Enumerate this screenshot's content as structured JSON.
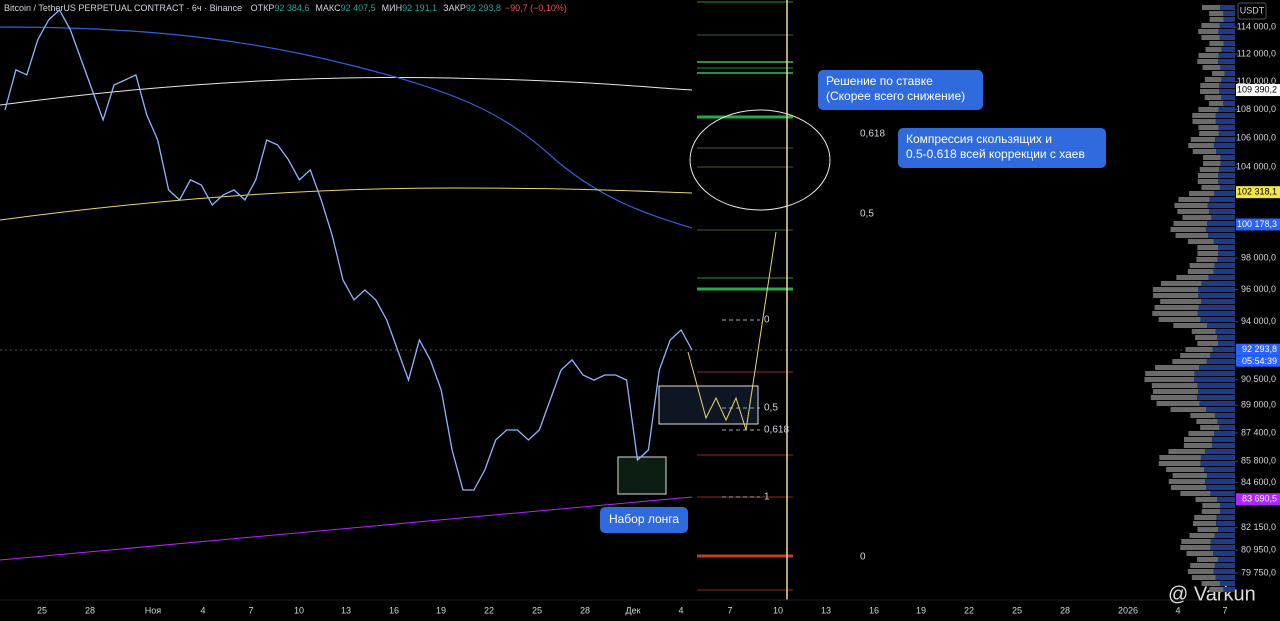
{
  "chart_data": {
    "type": "line",
    "title": "Bitcoin / TetherUS PERPETUAL CONTRACT · 6ч · Binance",
    "ohlc_header": [
      {
        "name": "ОТКР",
        "text": "92 384,6"
      },
      {
        "name": "МАКС",
        "text": "92 407,5"
      },
      {
        "name": "МИН",
        "text": "92 191,1"
      },
      {
        "name": "ЗАКР",
        "text": "92 293,8"
      }
    ],
    "change": "−90,7 (−0,10%)",
    "currency": "USDT",
    "log_scale": true,
    "grid": false,
    "ylim": [
      78350,
      116030
    ],
    "yticks": [
      {
        "value": 114000,
        "label": "114 000,0"
      },
      {
        "value": 112000,
        "label": "112 000,0"
      },
      {
        "value": 110000,
        "label": "110 000,0"
      },
      {
        "value": 108000,
        "label": "108 000,0"
      },
      {
        "value": 106000,
        "label": "106 000,0"
      },
      {
        "value": 104000,
        "label": "104 000,0"
      },
      {
        "value": 98000,
        "label": "98 000,0"
      },
      {
        "value": 96000,
        "label": "96 000,0"
      },
      {
        "value": 94000,
        "label": "94 000,0"
      },
      {
        "value": 90500,
        "label": "90 500,0"
      },
      {
        "value": 89000,
        "label": "89 000,0"
      },
      {
        "value": 87400,
        "label": "87 400,0"
      },
      {
        "value": 85800,
        "label": "85 800,0"
      },
      {
        "value": 84600,
        "label": "84 600,0"
      },
      {
        "value": 82150,
        "label": "82 150,0"
      },
      {
        "value": 80950,
        "label": "80 950,0"
      },
      {
        "value": 79750,
        "label": "79 750,0"
      }
    ],
    "price_tags": [
      {
        "value": 109390.2,
        "label": "109 390,2",
        "color": "#ffffff"
      },
      {
        "value": 102318.1,
        "label": "102 318,1",
        "color": "#f5e642"
      },
      {
        "value": 100178.3,
        "label": "100 178,3",
        "color": "#2962ff"
      },
      {
        "value": 92293.8,
        "label": "92 293,8",
        "color": "#2962ff"
      },
      {
        "value": 83690.5,
        "label": "83 690,5",
        "color": "#b026ff"
      }
    ],
    "countdown": "05:54:39",
    "x_labels": [
      "25",
      "28",
      "Ноя",
      "4",
      "7",
      "10",
      "13",
      "16",
      "19",
      "22",
      "25",
      "28",
      "Дек",
      "4",
      "7",
      "10",
      "13",
      "16",
      "19",
      "22",
      "25",
      "28",
      "2026",
      "4",
      "7"
    ],
    "series": [
      {
        "name": "BTCUSDT",
        "color": "#8fb4ff",
        "values": [
          107970,
          110840,
          110480,
          113030,
          114520,
          115280,
          113780,
          111560,
          109390,
          107270,
          109750,
          110110,
          110480,
          107620,
          105870,
          102470,
          101800,
          103140,
          102800,
          101460,
          102130,
          102470,
          101800,
          103140,
          105870,
          105530,
          104500,
          103140,
          103820,
          101800,
          99490,
          96600,
          95350,
          95970,
          95350,
          94110,
          92280,
          90480,
          92880,
          91680,
          89890,
          86430,
          84200,
          84200,
          85310,
          87000,
          87570,
          87570,
          87000,
          87570,
          89310,
          91080,
          91680,
          90780,
          90480,
          90780,
          90780,
          90480,
          85870,
          86430,
          91080,
          92880,
          93490,
          92280
        ]
      }
    ],
    "fib_labels": [
      "0",
      "0,5",
      "0,618",
      "1"
    ],
    "fib_labels_right": [
      "0,618",
      "0,5",
      "0"
    ],
    "annotations": [
      {
        "lines": [
          "Решение по ставке",
          "(Скорее всего снижение)"
        ]
      },
      {
        "lines": [
          "Компрессия скользящих и",
          "0.5-0.618 всей коррекции с хаев"
        ]
      },
      {
        "lines": [
          "Набор лонга"
        ]
      }
    ],
    "watermark": "@ Varkun"
  }
}
